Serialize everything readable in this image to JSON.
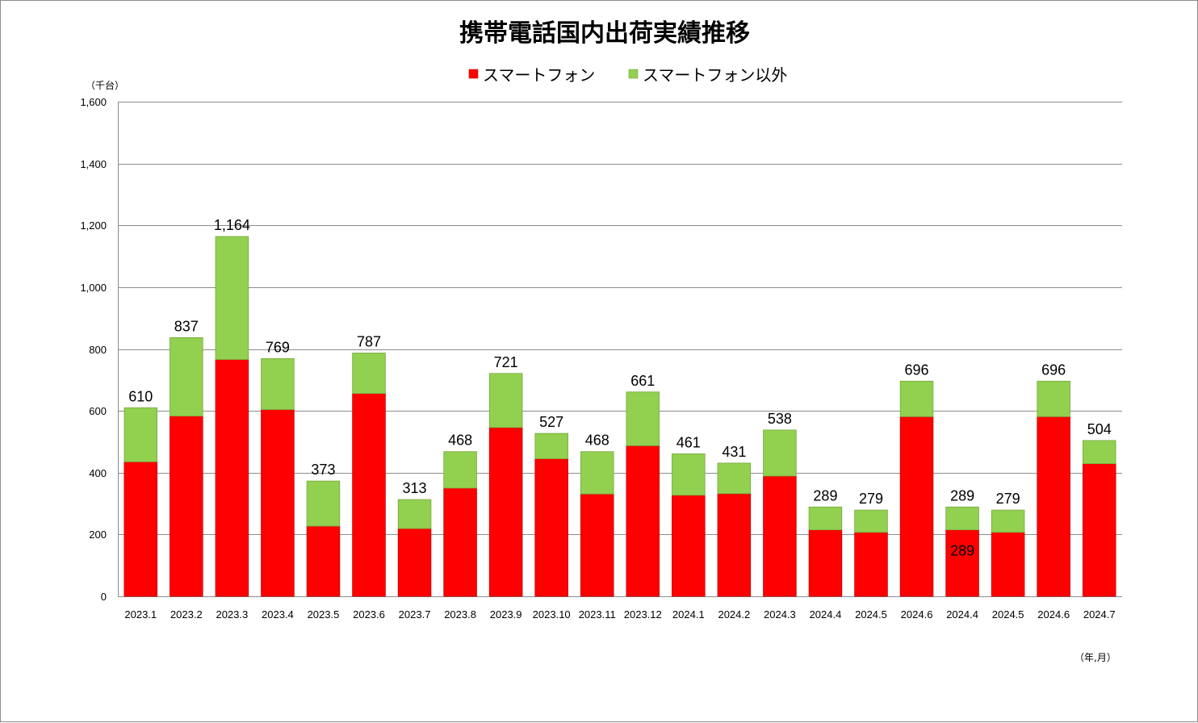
{
  "chart_data": {
    "type": "bar",
    "stacked": true,
    "title": "携帯電話国内出荷実績推移",
    "y_unit_label": "（千台）",
    "x_unit_label": "（年,月）",
    "ylim": [
      0,
      1600
    ],
    "yticks": [
      0,
      200,
      400,
      600,
      800,
      1000,
      1200,
      1400,
      1600
    ],
    "ytick_labels": [
      "0",
      "200",
      "400",
      "600",
      "800",
      "1,000",
      "1,200",
      "1,400",
      "1,600"
    ],
    "grid": true,
    "legend_position": "top",
    "categories": [
      "2023.1",
      "2023.2",
      "2023.3",
      "2023.4",
      "2023.5",
      "2023.6",
      "2023.7",
      "2023.8",
      "2023.9",
      "2023.10",
      "2023.11",
      "2023.12",
      "2024.1",
      "2024.2",
      "2024.3",
      "2024.4",
      "2024.5",
      "2024.6",
      "2024.4",
      "2024.5",
      "2024.6",
      "2024.7"
    ],
    "series": [
      {
        "name": "スマートフォン",
        "color": "#ff0000",
        "values": [
          435,
          583,
          766,
          604,
          227,
          656,
          219,
          350,
          546,
          445,
          331,
          487,
          327,
          332,
          389,
          215,
          207,
          581,
          215,
          207,
          581,
          429
        ]
      },
      {
        "name": "スマートフォン以外",
        "color": "#92d050",
        "values": [
          175,
          254,
          398,
          165,
          146,
          131,
          94,
          118,
          175,
          82,
          137,
          174,
          134,
          99,
          149,
          74,
          72,
          115,
          74,
          72,
          115,
          75
        ]
      }
    ],
    "totals": [
      "610",
      "837",
      "1,164",
      "769",
      "373",
      "787",
      "313",
      "468",
      "721",
      "527",
      "468",
      "661",
      "461",
      "431",
      "538",
      "289",
      "279",
      "696",
      "289",
      "279",
      "696",
      "504"
    ],
    "extra_labels": [
      {
        "category_index": 18,
        "text": "289"
      }
    ]
  }
}
